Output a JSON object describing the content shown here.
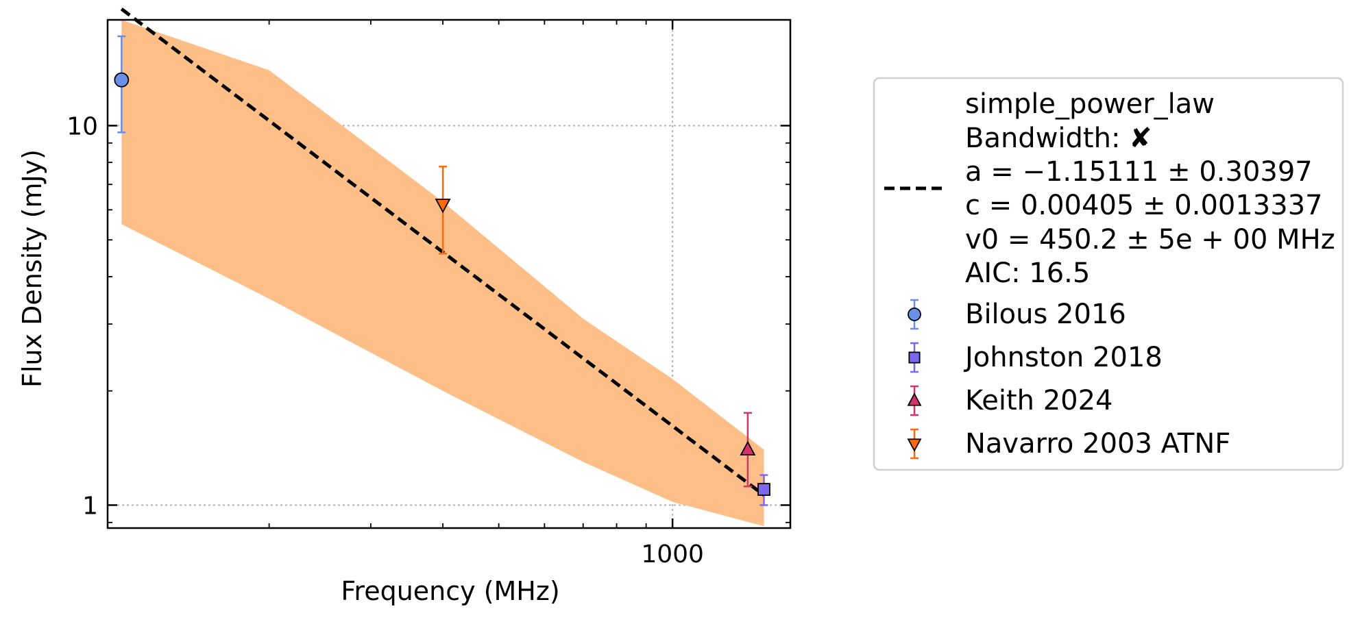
{
  "chart_data": {
    "type": "scatter",
    "xlabel": "Frequency (MHz)",
    "ylabel": "Flux Density (mJy)",
    "x_scale": "log",
    "y_scale": "log",
    "xlim": [
      105,
      1600
    ],
    "ylim": [
      0.87,
      19
    ],
    "x_ticks": [
      {
        "value": 1000,
        "label": "1000"
      }
    ],
    "y_ticks": [
      {
        "value": 1,
        "label": "1"
      },
      {
        "value": 10,
        "label": "10"
      }
    ],
    "grid": true,
    "legend_position": "outside-right",
    "fit": {
      "name": "simple_power_law",
      "bandwidth_label": "Bandwidth: ✘",
      "param_lines": [
        "a = −1.15111 ± 0.30397",
        "c = 0.00405 ± 0.0013337",
        "v0 = 450.2 ± 5e + 00 MHz"
      ],
      "aic_label": "AIC: 16.5",
      "a": -1.15111,
      "c": 0.00405,
      "v0": 450.2,
      "x_range": [
        111,
        1440
      ],
      "band_lower": [
        [
          111,
          5.5
        ],
        [
          200,
          3.5
        ],
        [
          400,
          2.0
        ],
        [
          700,
          1.3
        ],
        [
          1000,
          1.02
        ],
        [
          1440,
          0.88
        ]
      ],
      "band_upper": [
        [
          111,
          25
        ],
        [
          200,
          14
        ],
        [
          400,
          6.3
        ],
        [
          700,
          3.1
        ],
        [
          1000,
          2.15
        ],
        [
          1440,
          1.4
        ]
      ],
      "color": "#fdbf87",
      "line_color": "#000000"
    },
    "series": [
      {
        "name": "Bilous 2016",
        "marker": "circle",
        "color": "#6a8fe8",
        "points": [
          {
            "x": 111,
            "y": 13.2,
            "err_low": 3.6,
            "err_high": 4.0
          }
        ]
      },
      {
        "name": "Johnston 2018",
        "marker": "square",
        "color": "#7b68ee",
        "points": [
          {
            "x": 1440,
            "y": 1.1,
            "err_low": 0.1,
            "err_high": 0.1
          }
        ]
      },
      {
        "name": "Keith 2024",
        "marker": "triangle-up",
        "color": "#d6336c",
        "points": [
          {
            "x": 1350,
            "y": 1.4,
            "err_low": 0.28,
            "err_high": 0.35
          }
        ]
      },
      {
        "name": "Navarro 2003 ATNF",
        "marker": "triangle-down",
        "color": "#ff6a0d",
        "points": [
          {
            "x": 400,
            "y": 6.2,
            "err_low": 1.6,
            "err_high": 1.6
          }
        ]
      }
    ]
  }
}
